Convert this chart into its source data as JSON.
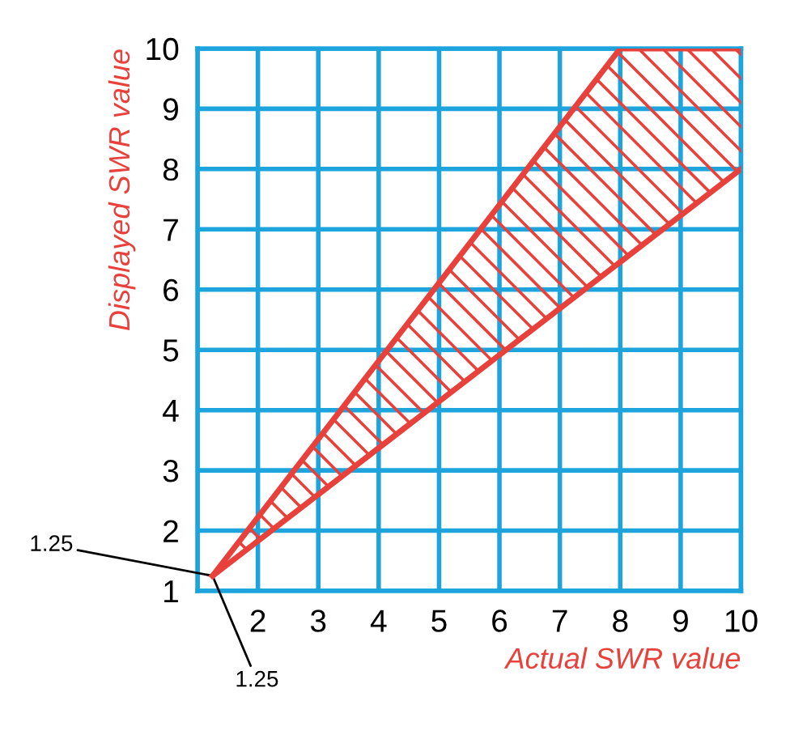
{
  "chart_data": {
    "type": "line",
    "xlabel": "Actual SWR value",
    "ylabel": "Displayed SWR value",
    "series": [
      {
        "color": "#e8403a",
        "x": [
          1.25,
          8,
          10
        ],
        "values": [
          1.25,
          10,
          10
        ]
      },
      {
        "color": "#e8403a",
        "x": [
          1.25,
          10
        ],
        "values": [
          1.25,
          8
        ]
      }
    ],
    "xlim": [
      1,
      10
    ],
    "ylim": [
      1,
      10
    ],
    "xticks": [
      {
        "value": 1,
        "label": null
      },
      2,
      3,
      4,
      5,
      6,
      7,
      8,
      9,
      10
    ],
    "yticks": [
      1,
      2,
      3,
      4,
      5,
      6,
      7,
      8,
      9,
      10
    ],
    "grid": true,
    "marker": "none",
    "line_style": "solid",
    "annotations": [
      {
        "text": "1.25",
        "x": 1.25,
        "y": 1.25
      },
      {
        "text": "1.25",
        "x": 1.25,
        "y": 1.25
      }
    ]
  }
}
